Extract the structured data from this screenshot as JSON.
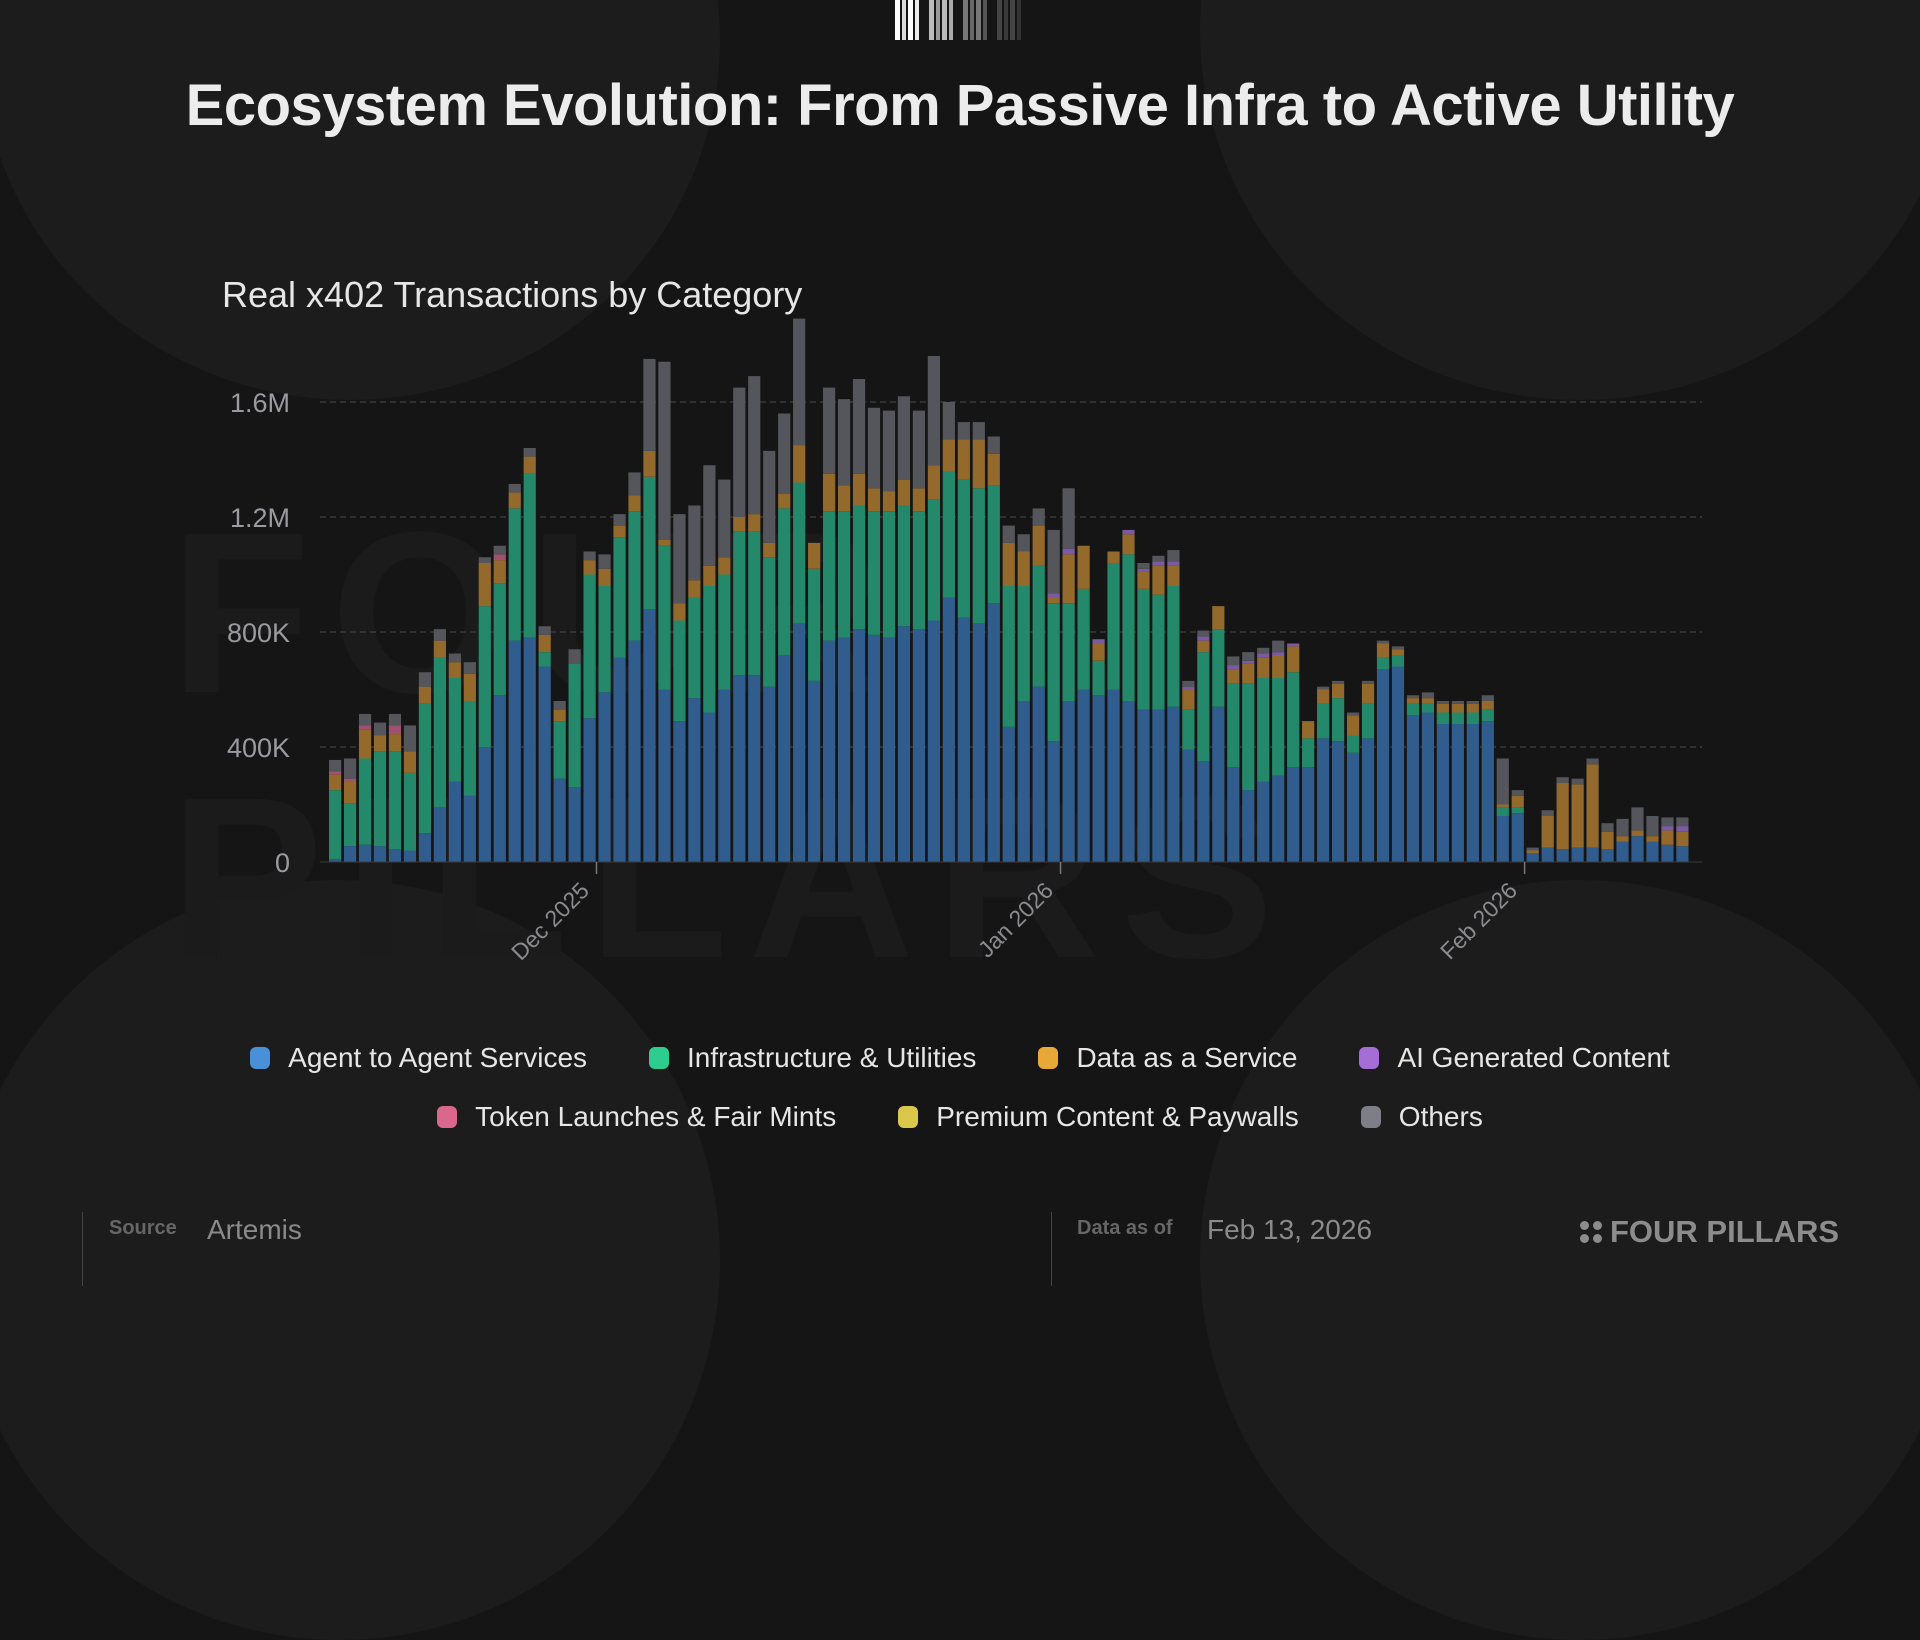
{
  "header": {
    "title": "Ecosystem Evolution: From Passive Infra to Active Utility",
    "logo": "barcode-logo-icon"
  },
  "footer": {
    "source_label": "Source",
    "source_value": "Artemis",
    "asof_label": "Data as of",
    "asof_value": "Feb 13, 2026",
    "brand": "FOUR PILLARS",
    "brand_icon": "four-dots-icon"
  },
  "watermark": "FOUR PILLARS",
  "chart_data": {
    "type": "bar",
    "stacked": true,
    "title": "Real x402 Transactions by Category",
    "xlabel": "",
    "ylabel": "",
    "ylim": [
      0,
      1600000
    ],
    "yticks": [
      0,
      400000,
      800000,
      1200000,
      1600000
    ],
    "ytick_labels": [
      "0",
      "400K",
      "800K",
      "1.2M",
      "1.6M"
    ],
    "grid": true,
    "legend_position": "bottom",
    "x_tick_labels": [
      {
        "label": "Dec 2025",
        "index": 18
      },
      {
        "label": "Jan 2026",
        "index": 49
      },
      {
        "label": "Feb 2026",
        "index": 80
      }
    ],
    "x_start": "2025-11-13",
    "x_interval": "daily",
    "unit": "thousands",
    "series": [
      {
        "name": "Agent to Agent Services",
        "color": "#4a90d9",
        "values": [
          10,
          55,
          60,
          55,
          45,
          40,
          100,
          190,
          280,
          230,
          400,
          580,
          770,
          780,
          680,
          290,
          260,
          500,
          590,
          710,
          770,
          880,
          600,
          490,
          570,
          520,
          600,
          650,
          650,
          610,
          720,
          830,
          630,
          770,
          780,
          810,
          790,
          780,
          820,
          810,
          840,
          920,
          850,
          830,
          900,
          470,
          560,
          610,
          420,
          560,
          600,
          580,
          600,
          560,
          530,
          530,
          540,
          390,
          350,
          540,
          330,
          250,
          280,
          300,
          330,
          330,
          430,
          420,
          380,
          430,
          670,
          680,
          510,
          520,
          480,
          480,
          480,
          490,
          160,
          170,
          30,
          50,
          45,
          50,
          50,
          45,
          70,
          90,
          70,
          60,
          55
        ]
      },
      {
        "name": "Infrastructure & Utilities",
        "color": "#2ecc8f",
        "values": [
          240,
          150,
          300,
          330,
          340,
          270,
          450,
          520,
          360,
          330,
          490,
          390,
          460,
          570,
          50,
          200,
          430,
          500,
          370,
          420,
          450,
          460,
          500,
          350,
          350,
          440,
          400,
          500,
          500,
          450,
          510,
          490,
          390,
          450,
          440,
          430,
          430,
          440,
          420,
          410,
          420,
          440,
          480,
          470,
          410,
          490,
          400,
          420,
          480,
          340,
          350,
          120,
          440,
          510,
          420,
          400,
          420,
          140,
          380,
          270,
          290,
          370,
          360,
          340,
          330,
          100,
          120,
          150,
          60,
          120,
          40,
          40,
          40,
          30,
          40,
          40,
          40,
          40,
          30,
          20,
          0,
          0,
          0,
          0,
          0,
          0,
          0,
          0,
          0,
          0,
          0
        ]
      },
      {
        "name": "Data as a Service",
        "color": "#e8a838",
        "values": [
          55,
          75,
          100,
          55,
          60,
          75,
          60,
          60,
          55,
          95,
          150,
          80,
          55,
          60,
          60,
          40,
          0,
          50,
          60,
          40,
          55,
          90,
          20,
          60,
          60,
          70,
          60,
          50,
          60,
          50,
          50,
          130,
          90,
          130,
          90,
          110,
          80,
          70,
          90,
          80,
          120,
          110,
          140,
          170,
          110,
          150,
          120,
          140,
          20,
          170,
          150,
          60,
          40,
          70,
          60,
          100,
          70,
          70,
          40,
          80,
          50,
          70,
          70,
          80,
          90,
          60,
          50,
          50,
          70,
          70,
          50,
          20,
          20,
          20,
          30,
          30,
          30,
          30,
          10,
          40,
          10,
          110,
          230,
          220,
          290,
          60,
          20,
          20,
          20,
          50,
          50
        ]
      },
      {
        "name": "AI Generated Content",
        "color": "#a46ed6",
        "values": [
          0,
          0,
          0,
          0,
          0,
          0,
          0,
          0,
          0,
          0,
          0,
          0,
          0,
          0,
          0,
          0,
          0,
          0,
          0,
          0,
          0,
          0,
          0,
          0,
          0,
          0,
          0,
          0,
          0,
          0,
          0,
          0,
          0,
          0,
          0,
          0,
          0,
          0,
          0,
          0,
          0,
          0,
          0,
          0,
          0,
          0,
          0,
          0,
          15,
          20,
          0,
          15,
          0,
          15,
          10,
          15,
          15,
          10,
          15,
          0,
          15,
          10,
          15,
          10,
          10,
          0,
          0,
          0,
          0,
          0,
          0,
          0,
          0,
          0,
          0,
          0,
          0,
          0,
          0,
          0,
          0,
          0,
          0,
          0,
          0,
          0,
          0,
          0,
          0,
          15,
          20
        ]
      },
      {
        "name": "Token Launches & Fair Mints",
        "color": "#d9688c",
        "values": [
          10,
          10,
          15,
          0,
          30,
          0,
          0,
          0,
          0,
          0,
          0,
          20,
          0,
          0,
          0,
          0,
          0,
          0,
          0,
          0,
          0,
          0,
          0,
          0,
          0,
          0,
          0,
          0,
          0,
          0,
          0,
          0,
          0,
          0,
          0,
          0,
          0,
          0,
          0,
          0,
          0,
          0,
          0,
          0,
          0,
          0,
          0,
          0,
          0,
          0,
          0,
          0,
          0,
          0,
          0,
          0,
          0,
          0,
          0,
          0,
          0,
          0,
          0,
          0,
          0,
          0,
          0,
          0,
          0,
          0,
          0,
          0,
          0,
          0,
          0,
          0,
          0,
          0,
          0,
          0,
          0,
          0,
          0,
          0,
          0,
          0,
          0,
          0,
          0,
          0,
          0
        ]
      },
      {
        "name": "Premium Content & Paywalls",
        "color": "#d9c84a",
        "values": [
          0,
          0,
          0,
          0,
          0,
          0,
          0,
          0,
          0,
          0,
          0,
          0,
          0,
          0,
          0,
          0,
          0,
          0,
          0,
          0,
          0,
          0,
          0,
          0,
          0,
          0,
          0,
          0,
          0,
          0,
          0,
          0,
          0,
          0,
          0,
          0,
          0,
          0,
          0,
          0,
          0,
          0,
          0,
          0,
          0,
          0,
          0,
          0,
          0,
          0,
          0,
          0,
          0,
          0,
          0,
          0,
          0,
          0,
          0,
          0,
          0,
          0,
          0,
          0,
          0,
          0,
          0,
          0,
          0,
          0,
          0,
          0,
          0,
          0,
          0,
          0,
          0,
          0,
          0,
          0,
          0,
          0,
          0,
          0,
          0,
          0,
          0,
          0,
          0,
          0,
          0
        ]
      },
      {
        "name": "Others",
        "color": "#7d7e86",
        "values": [
          40,
          70,
          40,
          45,
          40,
          90,
          50,
          40,
          30,
          40,
          20,
          30,
          30,
          30,
          30,
          30,
          50,
          30,
          50,
          40,
          80,
          320,
          620,
          310,
          260,
          350,
          270,
          450,
          480,
          320,
          280,
          440,
          0,
          300,
          300,
          330,
          280,
          280,
          290,
          270,
          380,
          130,
          60,
          60,
          60,
          60,
          60,
          60,
          220,
          210,
          0,
          0,
          0,
          0,
          20,
          20,
          40,
          20,
          20,
          0,
          30,
          30,
          20,
          40,
          0,
          0,
          10,
          10,
          10,
          10,
          10,
          10,
          10,
          20,
          10,
          10,
          10,
          20,
          160,
          20,
          10,
          20,
          20,
          20,
          20,
          30,
          60,
          80,
          70,
          30,
          30
        ]
      }
    ]
  }
}
